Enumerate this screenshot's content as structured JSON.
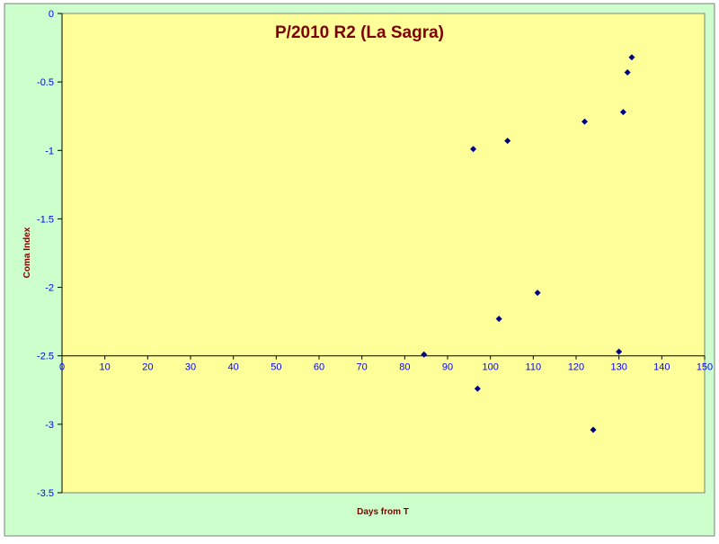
{
  "chart_data": {
    "type": "scatter",
    "title": "P/2010 R2 (La Sagra)",
    "xlabel": "Days from T",
    "ylabel": "Coma Index",
    "xlim": [
      0,
      150
    ],
    "ylim": [
      -3.5,
      0
    ],
    "x_ticks": [
      0,
      10,
      20,
      30,
      40,
      50,
      60,
      70,
      80,
      90,
      100,
      110,
      120,
      130,
      140,
      150
    ],
    "y_ticks": [
      0,
      -0.5,
      -1,
      -1.5,
      -2,
      -2.5,
      -3,
      -3.5
    ],
    "x_axis_crosses_at": -2.5,
    "grid": false,
    "legend": "none",
    "series": [
      {
        "points": [
          {
            "x": 84.5,
            "y": -2.49
          },
          {
            "x": 96,
            "y": -0.99
          },
          {
            "x": 97,
            "y": -2.74
          },
          {
            "x": 102,
            "y": -2.23
          },
          {
            "x": 104,
            "y": -0.93
          },
          {
            "x": 111,
            "y": -2.04
          },
          {
            "x": 122,
            "y": -0.79
          },
          {
            "x": 124,
            "y": -3.04
          },
          {
            "x": 130,
            "y": -2.47
          },
          {
            "x": 131,
            "y": -0.72
          },
          {
            "x": 132,
            "y": -0.43
          },
          {
            "x": 133,
            "y": -0.32
          }
        ]
      }
    ],
    "colors": {
      "outer_background": "#ccffcc",
      "plot_background": "#ffff99",
      "title": "#800000",
      "axis_labels": "#800000",
      "tick_labels": "#0000ff",
      "markers": "#000080",
      "axes": "#000000"
    },
    "marker_shape": "diamond"
  }
}
